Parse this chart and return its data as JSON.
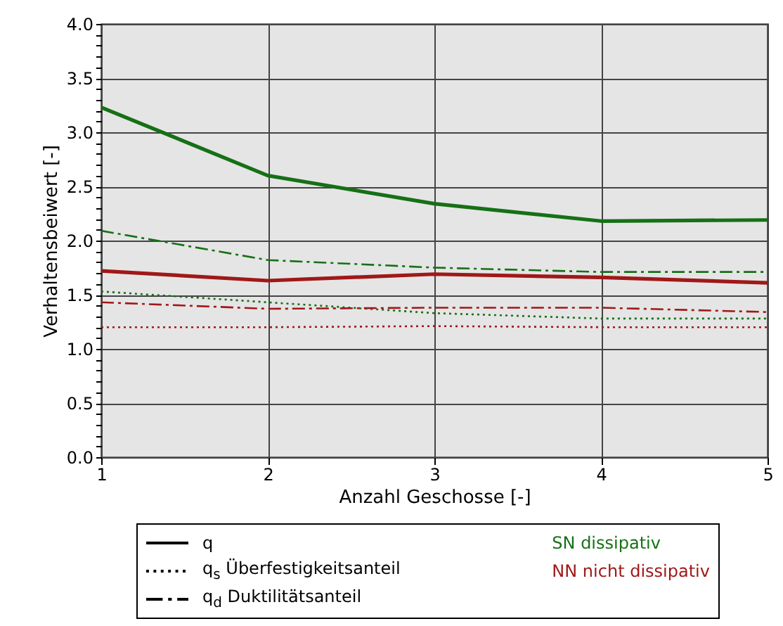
{
  "chart_data": {
    "type": "line",
    "xlabel": "Anzahl Geschosse [-]",
    "ylabel": "Verhaltensbeiwert [-]",
    "x": [
      1,
      2,
      3,
      4,
      5
    ],
    "series": [
      {
        "color": "#167016",
        "line_style": "solid",
        "values": [
          3.23,
          2.6,
          2.34,
          2.18,
          2.19
        ]
      },
      {
        "color": "#167016",
        "line_style": "dotted",
        "values": [
          1.53,
          1.43,
          1.33,
          1.28,
          1.28
        ]
      },
      {
        "color": "#167016",
        "line_style": "dashdot",
        "values": [
          2.09,
          1.82,
          1.75,
          1.71,
          1.71
        ]
      },
      {
        "color": "#a01818",
        "line_style": "solid",
        "values": [
          1.72,
          1.63,
          1.69,
          1.66,
          1.61
        ]
      },
      {
        "color": "#a01818",
        "line_style": "dotted",
        "values": [
          1.2,
          1.2,
          1.21,
          1.2,
          1.2
        ]
      },
      {
        "color": "#a01818",
        "line_style": "dashdot",
        "values": [
          1.43,
          1.37,
          1.38,
          1.38,
          1.34
        ]
      }
    ],
    "xlim": [
      1,
      5
    ],
    "xticks": [
      1,
      2,
      3,
      4,
      5
    ],
    "ylim": [
      0,
      4
    ],
    "yticks": [
      {
        "value": 0,
        "label": "0.0"
      },
      {
        "value": 0.1,
        "label": null
      },
      {
        "value": 0.2,
        "label": null
      },
      {
        "value": 0.3,
        "label": null
      },
      {
        "value": 0.4,
        "label": null
      },
      0.5,
      {
        "value": 0.6,
        "label": null
      },
      {
        "value": 0.7,
        "label": null
      },
      {
        "value": 0.8,
        "label": null
      },
      {
        "value": 0.9,
        "label": null
      },
      {
        "value": 1,
        "label": "1.0"
      },
      {
        "value": 1.1,
        "label": null
      },
      {
        "value": 1.2,
        "label": null
      },
      {
        "value": 1.3,
        "label": null
      },
      {
        "value": 1.4,
        "label": null
      },
      1.5,
      {
        "value": 1.6,
        "label": null
      },
      {
        "value": 1.7,
        "label": null
      },
      {
        "value": 1.8,
        "label": null
      },
      {
        "value": 1.9,
        "label": null
      },
      {
        "value": 2,
        "label": "2.0"
      },
      {
        "value": 2.1,
        "label": null
      },
      {
        "value": 2.2,
        "label": null
      },
      {
        "value": 2.3,
        "label": null
      },
      {
        "value": 2.4,
        "label": null
      },
      2.5,
      {
        "value": 2.6,
        "label": null
      },
      {
        "value": 2.7,
        "label": null
      },
      {
        "value": 2.8,
        "label": null
      },
      {
        "value": 2.9,
        "label": null
      },
      {
        "value": 3,
        "label": "3.0"
      },
      {
        "value": 3.1,
        "label": null
      },
      {
        "value": 3.2,
        "label": null
      },
      {
        "value": 3.3,
        "label": null
      },
      {
        "value": 3.4,
        "label": null
      },
      3.5,
      {
        "value": 3.6,
        "label": null
      },
      {
        "value": 3.7,
        "label": null
      },
      {
        "value": 3.8,
        "label": null
      },
      {
        "value": 3.9,
        "label": null
      },
      {
        "value": 4,
        "label": "4.0"
      }
    ],
    "grid": true,
    "annotations": [
      "q",
      "q$_{s}$ Überfestigkeitsanteil",
      "q$_{d}$ Duktilitätsanteil",
      "SN dissipativ",
      "NN nicht dissipativ"
    ]
  }
}
